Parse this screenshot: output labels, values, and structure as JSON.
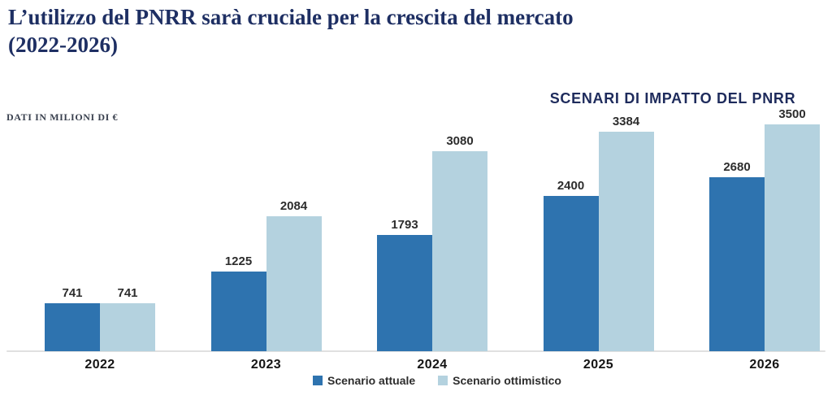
{
  "page": {
    "title_line1": "L’utilizzo del PNRR sarà cruciale per la crescita del mercato",
    "title_line2": "(2022-2026)",
    "units_label": "DATI IN MILIONI DI €",
    "chart_header": "SCENARI DI IMPATTO DEL PNRR"
  },
  "colors": {
    "title_navy": "#1e2f63",
    "header_navy": "#1e2b5c",
    "series_dark_blue": "#2e73af",
    "series_light_blue": "#b4d2df",
    "label_text": "#2d2d2d",
    "axis_line": "#e0e0e0"
  },
  "chart_data": {
    "type": "bar",
    "title": "SCENARI DI IMPATTO DEL PNRR",
    "subtitle": "L’utilizzo del PNRR sarà cruciale per la crescita del mercato (2022-2026)",
    "units": "DATI IN MILIONI DI €",
    "categories": [
      "2022",
      "2023",
      "2024",
      "2025",
      "2026"
    ],
    "series": [
      {
        "name": "Scenario attuale",
        "color": "#2e73af",
        "values": [
          741,
          1225,
          1793,
          2400,
          2680
        ]
      },
      {
        "name": "Scenario ottimistico",
        "color": "#b4d2df",
        "values": [
          741,
          2084,
          3080,
          3384,
          3500
        ]
      }
    ],
    "ylim": [
      0,
      3500
    ],
    "grid": false,
    "data_labels": true,
    "legend_position": "bottom"
  },
  "legend": {
    "items": [
      {
        "label": "Scenario attuale",
        "color": "#2e73af"
      },
      {
        "label": "Scenario ottimistico",
        "color": "#b4d2df"
      }
    ]
  }
}
